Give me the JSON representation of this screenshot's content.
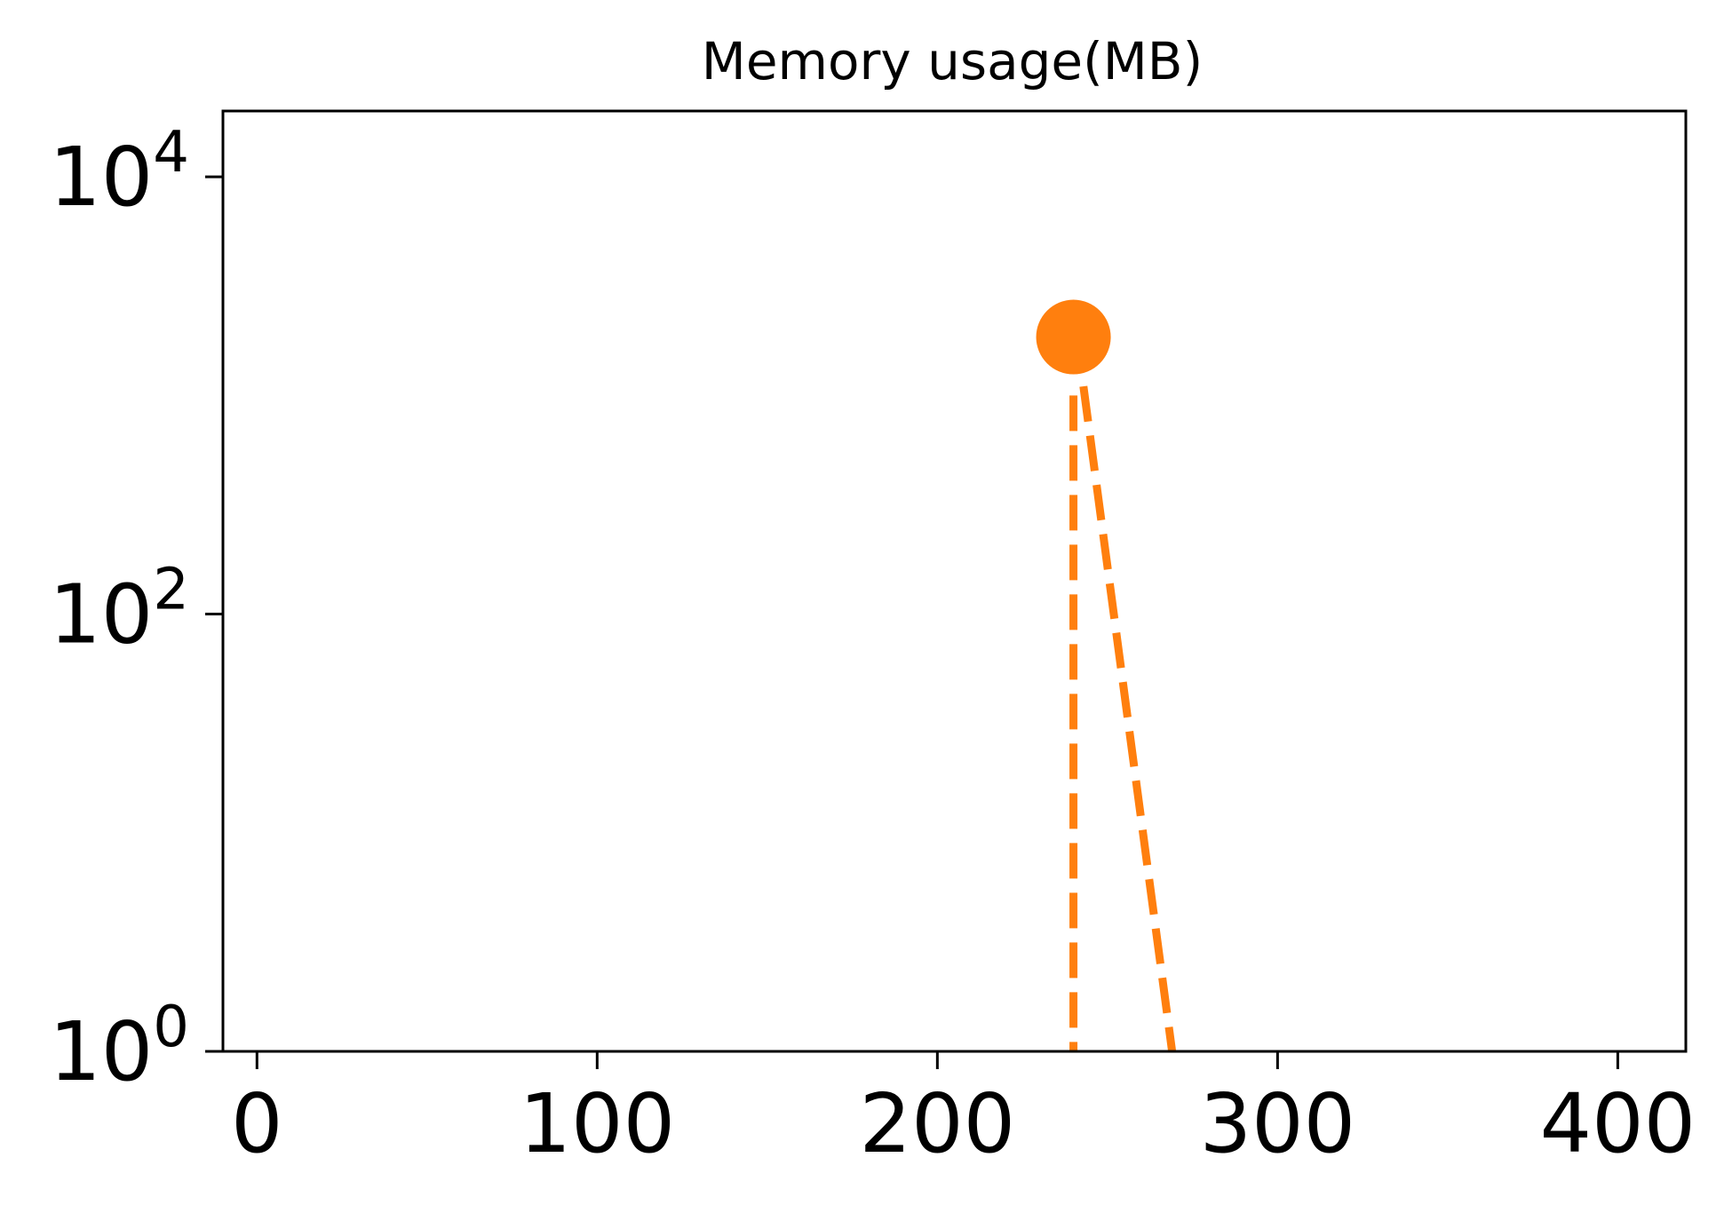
{
  "chart_data": {
    "type": "line",
    "title": "Memory usage(MB)",
    "xlabel": "",
    "ylabel": "",
    "y_scale": "log",
    "xlim": [
      -10,
      420
    ],
    "ylim": [
      1,
      20000
    ],
    "x_ticks": [
      0,
      100,
      200,
      300,
      400
    ],
    "x_tick_labels": [
      "0",
      "100",
      "200",
      "300",
      "400"
    ],
    "y_ticks": [
      1,
      100,
      10000
    ],
    "y_tick_labels": [
      {
        "base": "10",
        "exp": "0"
      },
      {
        "base": "10",
        "exp": "2"
      },
      {
        "base": "10",
        "exp": "4"
      }
    ],
    "grid": false,
    "color": "#ff7f0e",
    "marker": {
      "x": 240,
      "y": 1850
    },
    "dashed_lines": [
      {
        "x": [
          240,
          240
        ],
        "y": [
          1000,
          1
        ]
      },
      {
        "x": [
          241,
          269
        ],
        "y": [
          1850,
          1
        ]
      }
    ]
  }
}
